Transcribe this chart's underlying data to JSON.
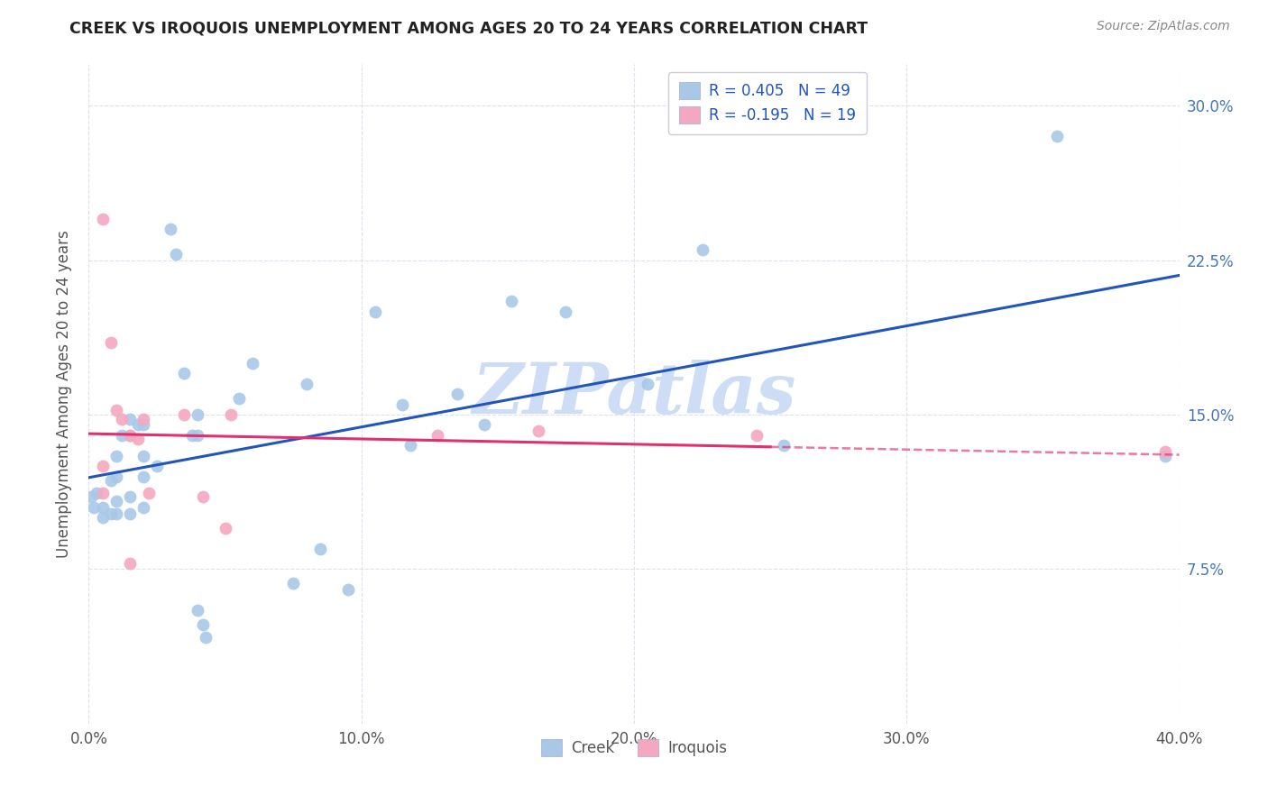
{
  "title": "CREEK VS IROQUOIS UNEMPLOYMENT AMONG AGES 20 TO 24 YEARS CORRELATION CHART",
  "source": "Source: ZipAtlas.com",
  "creek_R": 0.405,
  "creek_N": 49,
  "iroquois_R": -0.195,
  "iroquois_N": 19,
  "creek_color": "#a8c8e8",
  "iroquois_color": "#f4a8c0",
  "creek_line_color": "#2255bb",
  "iroquois_line_color": "#e03070",
  "creek_scatter": [
    [
      0.3,
      11.2
    ],
    [
      0.5,
      10.5
    ],
    [
      0.5,
      10.0
    ],
    [
      0.8,
      11.8
    ],
    [
      0.8,
      10.2
    ],
    [
      1.0,
      13.0
    ],
    [
      1.0,
      12.0
    ],
    [
      1.0,
      10.8
    ],
    [
      1.0,
      10.2
    ],
    [
      1.2,
      14.0
    ],
    [
      1.5,
      14.8
    ],
    [
      1.5,
      14.0
    ],
    [
      1.5,
      11.0
    ],
    [
      1.5,
      10.2
    ],
    [
      1.8,
      14.5
    ],
    [
      2.0,
      14.5
    ],
    [
      2.0,
      13.0
    ],
    [
      2.0,
      12.0
    ],
    [
      2.0,
      10.5
    ],
    [
      2.5,
      12.5
    ],
    [
      3.0,
      24.0
    ],
    [
      3.2,
      22.8
    ],
    [
      3.5,
      17.0
    ],
    [
      3.8,
      14.0
    ],
    [
      4.0,
      15.0
    ],
    [
      4.0,
      14.0
    ],
    [
      4.0,
      5.5
    ],
    [
      4.2,
      4.8
    ],
    [
      4.3,
      4.2
    ],
    [
      5.5,
      15.8
    ],
    [
      6.0,
      17.5
    ],
    [
      7.5,
      6.8
    ],
    [
      8.0,
      16.5
    ],
    [
      8.5,
      8.5
    ],
    [
      9.5,
      6.5
    ],
    [
      10.5,
      20.0
    ],
    [
      11.5,
      15.5
    ],
    [
      11.8,
      13.5
    ],
    [
      13.5,
      16.0
    ],
    [
      14.5,
      14.5
    ],
    [
      15.5,
      20.5
    ],
    [
      17.5,
      20.0
    ],
    [
      20.5,
      16.5
    ],
    [
      22.5,
      23.0
    ],
    [
      25.5,
      13.5
    ],
    [
      35.5,
      28.5
    ],
    [
      39.5,
      13.0
    ],
    [
      0.1,
      11.0
    ],
    [
      0.2,
      10.5
    ]
  ],
  "iroquois_scatter": [
    [
      0.5,
      24.5
    ],
    [
      0.8,
      18.5
    ],
    [
      1.0,
      15.2
    ],
    [
      1.2,
      14.8
    ],
    [
      1.5,
      14.0
    ],
    [
      1.8,
      13.8
    ],
    [
      2.0,
      14.8
    ],
    [
      2.2,
      11.2
    ],
    [
      3.5,
      15.0
    ],
    [
      4.2,
      11.0
    ],
    [
      5.2,
      15.0
    ],
    [
      12.8,
      14.0
    ],
    [
      16.5,
      14.2
    ],
    [
      24.5,
      14.0
    ],
    [
      39.5,
      13.2
    ],
    [
      0.5,
      12.5
    ],
    [
      0.5,
      11.2
    ],
    [
      1.5,
      7.8
    ],
    [
      5.0,
      9.5
    ]
  ],
  "xlim": [
    0,
    40
  ],
  "ylim": [
    0,
    32
  ],
  "xtick_vals": [
    0,
    10,
    20,
    30,
    40
  ],
  "xtick_labels": [
    "0.0%",
    "10.0%",
    "20.0%",
    "30.0%",
    "40.0%"
  ],
  "ytick_vals": [
    0,
    7.5,
    15.0,
    22.5,
    30.0
  ],
  "ytick_labels": [
    "",
    "7.5%",
    "15.0%",
    "22.5%",
    "30.0%"
  ],
  "watermark": "ZIPatlas",
  "watermark_color": "#ccddf5",
  "background_color": "#ffffff",
  "grid_color": "#dde0ee",
  "ylabel": "Unemployment Among Ages 20 to 24 years"
}
